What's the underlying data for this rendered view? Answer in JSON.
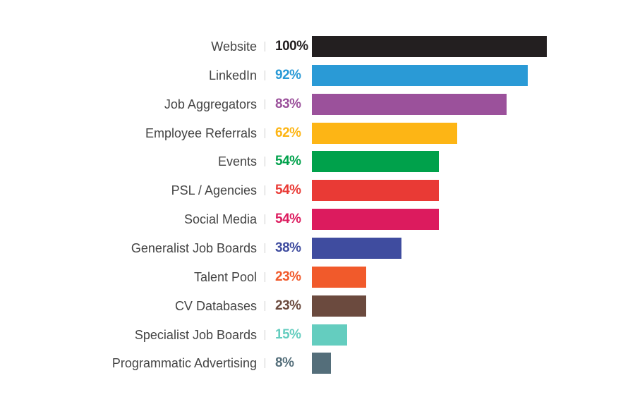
{
  "chart_data": {
    "type": "bar",
    "orientation": "horizontal",
    "categories": [
      "Website",
      "LinkedIn",
      "Job Aggregators",
      "Employee Referrals",
      "Events",
      "PSL / Agencies",
      "Social Media",
      "Generalist Job Boards",
      "Talent Pool",
      "CV Databases",
      "Specialist Job Boards",
      "Programmatic Advertising"
    ],
    "values": [
      100,
      92,
      83,
      62,
      54,
      54,
      54,
      38,
      23,
      23,
      15,
      8
    ],
    "value_labels": [
      "100%",
      "92%",
      "83%",
      "62%",
      "54%",
      "54%",
      "54%",
      "38%",
      "23%",
      "23%",
      "15%",
      "8%"
    ],
    "colors": [
      "#231f20",
      "#2a9ad6",
      "#9b519b",
      "#fdb515",
      "#00a14b",
      "#e93a35",
      "#dc1b5e",
      "#3f4c9f",
      "#f15a2b",
      "#6b4a3e",
      "#64cdbf",
      "#546e7a"
    ],
    "xlim": [
      0,
      100
    ],
    "grid": false,
    "legend": "none"
  }
}
